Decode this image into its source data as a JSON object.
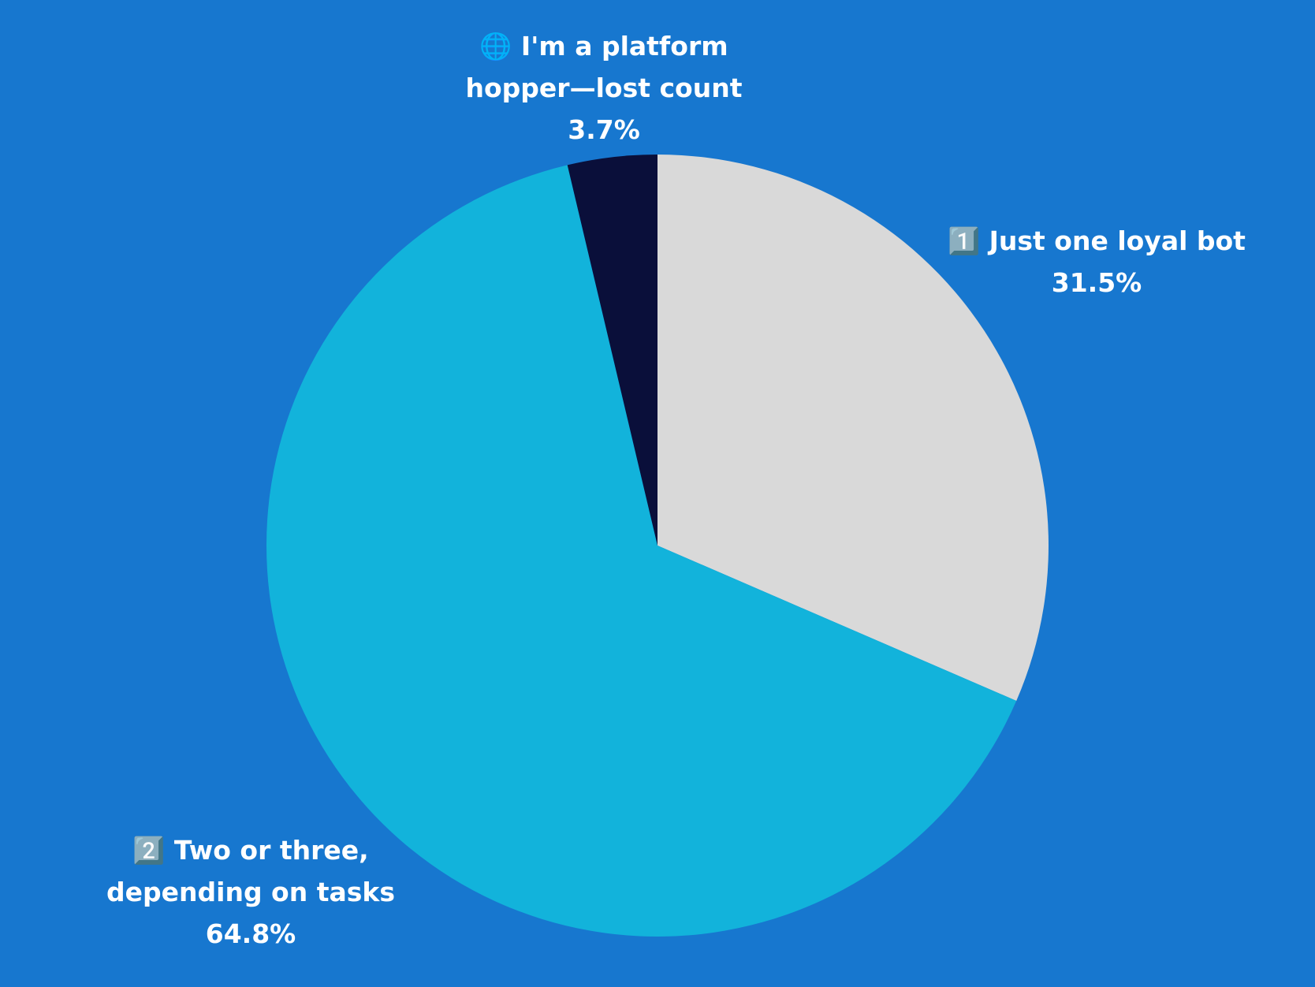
{
  "chart_data": {
    "type": "pie",
    "categories": [
      "1️⃣ Just one loyal bot",
      "2️⃣ Two or three, depending on tasks",
      "🌐 I'm a platform hopper—lost count"
    ],
    "values": [
      31.5,
      64.8,
      3.7
    ],
    "value_labels": [
      "31.5%",
      "64.8%",
      "3.7%"
    ],
    "colors": [
      "#d9d9d9",
      "#12b3db",
      "#0a0f3a"
    ],
    "background": "#1777cf"
  }
}
